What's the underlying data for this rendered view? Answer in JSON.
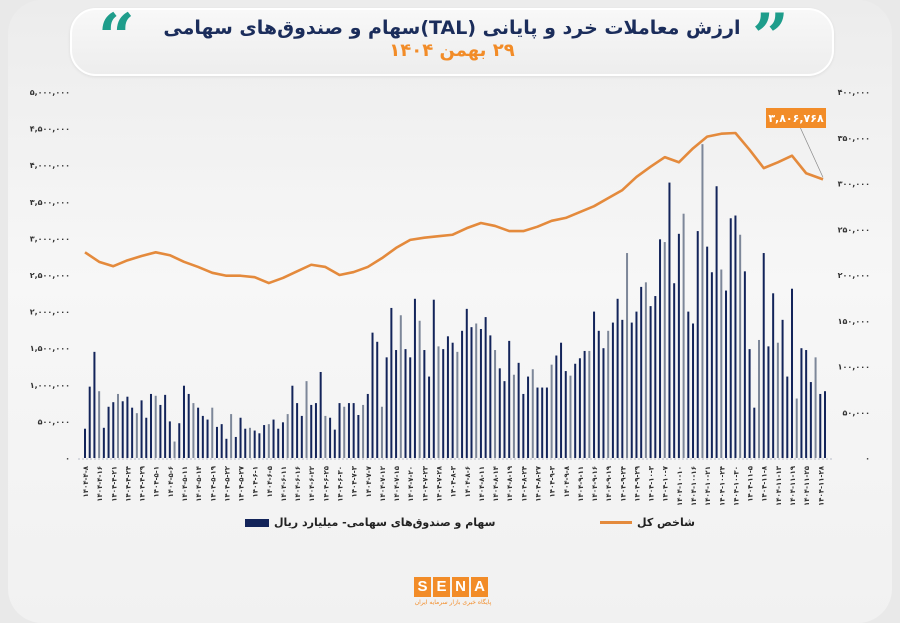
{
  "header": {
    "title": "ارزش معاملات خرد و پایانی (TAL)سهام و صندوق‌های سهامی",
    "subtitle": "۲۹ بهمن ۱۴۰۴",
    "quote_left": "“",
    "quote_right": "”"
  },
  "colors": {
    "bars": "#13245a",
    "bars_light": "#7d8799",
    "line": "#e48a3c",
    "accent": "#f28c28",
    "quote": "#1e9d8b",
    "title": "#1b2d5b"
  },
  "logo": {
    "text": "SENA",
    "letters": [
      "S",
      "E",
      "N",
      "A"
    ],
    "tagline": "پایگاه خبری بازار سرمایه ایران"
  },
  "chart_data": {
    "type": "bar+line",
    "title": "ارزش معاملات خرد و پایانی (TAL)سهام و صندوق‌های سهامی",
    "subtitle": "۲۹ بهمن ۱۴۰۴",
    "grid": false,
    "legend_placement": "bottom",
    "x_tick_labels": [
      "۱۴۰۴-۴-۸",
      "۱۴۰۴-۴-۱۶",
      "۱۴۰۴-۴-۲۱",
      "۱۴۰۴-۴-۲۴",
      "۱۴۰۴-۴-۲۹",
      "۱۴۰۴-۵-۱",
      "۱۴۰۴-۵-۶",
      "۱۴۰۴-۵-۱۱",
      "۱۴۰۴-۵-۱۴",
      "۱۴۰۴-۵-۱۹",
      "۱۴۰۴-۵-۲۲",
      "۱۴۰۴-۵-۲۷",
      "۱۴۰۴-۶-۱",
      "۱۴۰۴-۶-۵",
      "۱۴۰۴-۶-۱۱",
      "۱۴۰۴-۶-۱۶",
      "۱۴۰۴-۶-۲۲",
      "۱۴۰۴-۶-۲۵",
      "۱۴۰۴-۶-۳۰",
      "۱۴۰۴-۷-۳",
      "۱۴۰۴-۷-۷",
      "۱۴۰۴-۷-۱۲",
      "۱۴۰۴-۷-۱۵",
      "۱۴۰۴-۷-۲۰",
      "۱۴۰۴-۷-۲۳",
      "۱۴۰۴-۷-۲۸",
      "۱۴۰۴-۸-۳",
      "۱۴۰۴-۸-۶",
      "۱۴۰۴-۸-۱۱",
      "۱۴۰۴-۸-۱۴",
      "۱۴۰۴-۸-۱۹",
      "۱۴۰۴-۸-۲۴",
      "۱۴۰۴-۸-۲۷",
      "۱۴۰۴-۹-۳",
      "۱۴۰۴-۹-۸",
      "۱۴۰۴-۹-۱۱",
      "۱۴۰۴-۹-۱۶",
      "۱۴۰۴-۹-۱۹",
      "۱۴۰۴-۹-۲۴",
      "۱۴۰۴-۹-۲۹",
      "۱۴۰۴-۱۰-۳",
      "۱۴۰۴-۱۰-۷",
      "۱۴۰۴-۱۰-۱۰",
      "۱۴۰۴-۱۰-۱۶",
      "۱۴۰۴-۱۰-۲۱",
      "۱۴۰۴-۱۰-۲۴",
      "۱۴۰۴-۱۰-۳۰",
      "۱۴۰۴-۱۱-۵",
      "۱۴۰۴-۱۱-۸",
      "۱۴۰۴-۱۱-۱۳",
      "۱۴۰۴-۱۱-۱۹",
      "۱۴۰۴-۱۱-۲۵",
      "۱۴۰۴-۱۱-۲۸"
    ],
    "x_tick_every_n_bars": 3,
    "left_axis": {
      "range": [
        0,
        5000000
      ],
      "tick_labels": [
        "۰",
        "۵۰۰,۰۰۰",
        "۱,۰۰۰,۰۰۰",
        "۱,۵۰۰,۰۰۰",
        "۲,۰۰۰,۰۰۰",
        "۲,۵۰۰,۰۰۰",
        "۳,۰۰۰,۰۰۰",
        "۳,۵۰۰,۰۰۰",
        "۴,۰۰۰,۰۰۰",
        "۴,۵۰۰,۰۰۰",
        "۵,۰۰۰,۰۰۰"
      ]
    },
    "right_axis": {
      "range": [
        0,
        400000
      ],
      "tick_labels": [
        "۰",
        "۵۰,۰۰۰",
        "۱۰۰,۰۰۰",
        "۱۵۰,۰۰۰",
        "۲۰۰,۰۰۰",
        "۲۵۰,۰۰۰",
        "۳۰۰,۰۰۰",
        "۳۵۰,۰۰۰",
        "۴۰۰,۰۰۰"
      ]
    },
    "series": [
      {
        "name": "سهام و صندوق‌های سهامی- میلیارد ریال",
        "type": "bar",
        "axis": "right",
        "values": [
          32000,
          78000,
          116000,
          73000,
          33000,
          56000,
          61000,
          70000,
          62000,
          67000,
          55000,
          49000,
          63000,
          44000,
          70000,
          68000,
          58000,
          69000,
          40000,
          18000,
          38000,
          79000,
          70000,
          60000,
          55000,
          46000,
          42000,
          55000,
          34000,
          37000,
          21000,
          48000,
          23000,
          44000,
          32000,
          33000,
          30000,
          27000,
          36000,
          37000,
          42000,
          32000,
          39000,
          48000,
          79000,
          60000,
          46000,
          84000,
          58000,
          60000,
          94000,
          46000,
          44000,
          31000,
          60000,
          56000,
          60000,
          60000,
          47000,
          58000,
          70000,
          137000,
          127000,
          56000,
          110000,
          164000,
          118000,
          156000,
          119000,
          110000,
          174000,
          150000,
          118000,
          89000,
          173000,
          122000,
          119000,
          133000,
          126000,
          116000,
          139000,
          163000,
          143000,
          147000,
          141000,
          154000,
          134000,
          118000,
          98000,
          84000,
          128000,
          91000,
          104000,
          70000,
          89000,
          97000,
          77000,
          77000,
          77000,
          102000,
          112000,
          126000,
          95000,
          90000,
          103000,
          109000,
          117000,
          117000,
          160000,
          139000,
          120000,
          139000,
          148000,
          174000,
          151000,
          224000,
          148000,
          160000,
          187000,
          192000,
          166000,
          177000,
          239000,
          236000,
          301000,
          191000,
          245000,
          267000,
          160000,
          147000,
          248000,
          343000,
          231000,
          203000,
          297000,
          206000,
          183000,
          262000,
          265000,
          244000,
          204000,
          119000,
          55000,
          129000,
          224000,
          122000,
          180000,
          126000,
          151000,
          89000,
          185000,
          65000,
          120000,
          118000,
          83000,
          110000,
          70000,
          73000
        ]
      },
      {
        "name": "شاخص کل",
        "type": "line",
        "axis": "left",
        "values_at_ticks": [
          2810000,
          2680000,
          2620000,
          2700000,
          2760000,
          2810000,
          2770000,
          2680000,
          2610000,
          2530000,
          2490000,
          2490000,
          2470000,
          2390000,
          2460000,
          2550000,
          2640000,
          2610000,
          2500000,
          2540000,
          2610000,
          2730000,
          2870000,
          2980000,
          3010000,
          3030000,
          3050000,
          3140000,
          3210000,
          3170000,
          3100000,
          3100000,
          3160000,
          3240000,
          3280000,
          3360000,
          3440000,
          3550000,
          3660000,
          3840000,
          3980000,
          4110000,
          4040000,
          4230000,
          4390000,
          4430000,
          4440000,
          4210000,
          3960000,
          4040000,
          4130000,
          3890000,
          3806768
        ]
      }
    ],
    "annotations": [
      {
        "text": "۳,۸۰۶,۷۶۸",
        "target": "last line point"
      }
    ]
  }
}
